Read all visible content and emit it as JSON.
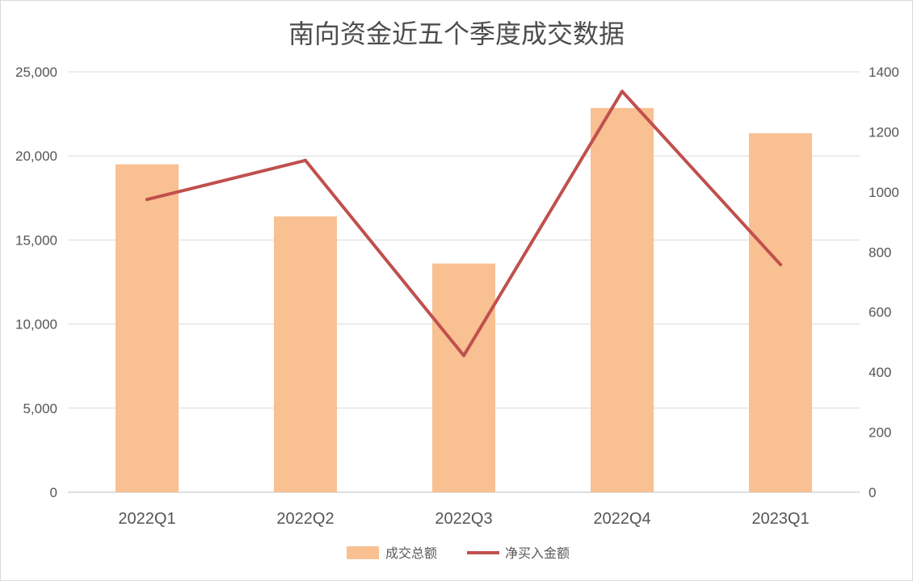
{
  "chart_data": {
    "type": "bar",
    "title": "南向资金近五个季度成交数据",
    "categories": [
      "2022Q1",
      "2022Q2",
      "2022Q3",
      "2022Q4",
      "2023Q1"
    ],
    "series": [
      {
        "name": "成交总额",
        "type": "bar",
        "axis": "left",
        "color": "#f9c092",
        "values": [
          19500,
          16400,
          13600,
          22850,
          21350
        ]
      },
      {
        "name": "净买入金额",
        "type": "line",
        "axis": "right",
        "color": "#c0504d",
        "values": [
          975,
          1105,
          455,
          1335,
          758
        ]
      }
    ],
    "y_left": {
      "min": 0,
      "max": 25000,
      "ticks": [
        0,
        5000,
        10000,
        15000,
        20000,
        25000
      ],
      "tick_labels": [
        "0",
        "5,000",
        "10,000",
        "15,000",
        "20,000",
        "25,000"
      ]
    },
    "y_right": {
      "min": 0,
      "max": 1400,
      "ticks": [
        0,
        200,
        400,
        600,
        800,
        1000,
        1200,
        1400
      ],
      "tick_labels": [
        "0",
        "200",
        "400",
        "600",
        "800",
        "1000",
        "1200",
        "1400"
      ]
    },
    "grid": true,
    "legend": "bottom"
  }
}
